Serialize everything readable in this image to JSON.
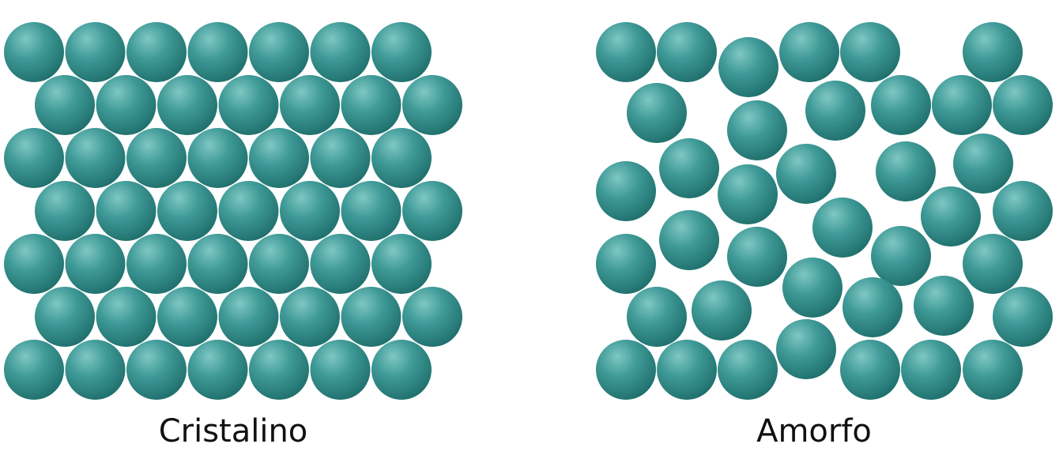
{
  "colors": {
    "sphere_highlight": "#7fc7c4",
    "sphere_mid": "#3f9a97",
    "sphere_shadow": "#1f6f6c",
    "background": "#ffffff",
    "label_text": "#111111"
  },
  "panels": [
    {
      "label": "Cristalino",
      "arrangement": "ordered",
      "sphere_rows": [
        7,
        7,
        7,
        7,
        7,
        7,
        7
      ]
    },
    {
      "label": "Amorfo",
      "arrangement": "random",
      "sphere_count": 40
    }
  ]
}
